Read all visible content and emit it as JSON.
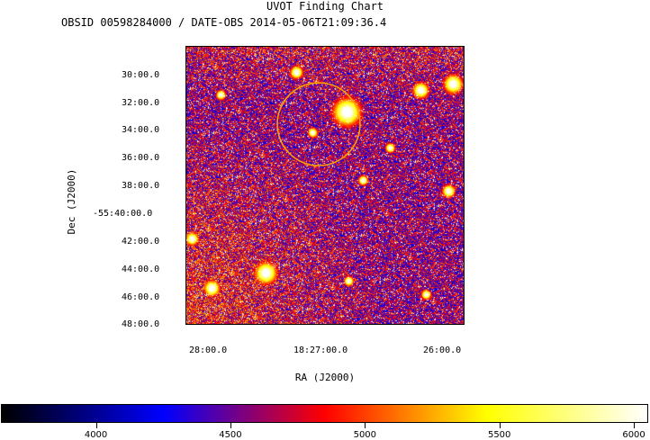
{
  "header": {
    "title": "UVOT Finding Chart",
    "obsid_line": "OBSID 00598284000 / DATE-OBS 2014-05-06T21:09:36.4"
  },
  "axes": {
    "xlabel": "RA (J2000)",
    "ylabel": "Dec (J2000)",
    "dec_ticks": [
      "30:00.0",
      "32:00.0",
      "34:00.0",
      "36:00.0",
      "38:00.0",
      "-55:40:00.0",
      "42:00.0",
      "44:00.0",
      "46:00.0",
      "48:00.0"
    ],
    "ra_ticks": [
      "28:00.0",
      "18:27:00.0",
      "26:00.0"
    ]
  },
  "marker": {
    "shape": "circle",
    "color": "#ffa500"
  },
  "colorbar": {
    "colormap": "black-blue-red-yellow-white",
    "min": 3650,
    "max": 6050,
    "ticks": [
      "4000",
      "4500",
      "5000",
      "5500",
      "6000"
    ],
    "colors": [
      "#000000",
      "#0000ff",
      "#ff0000",
      "#ffff00",
      "#ffffff"
    ]
  }
}
